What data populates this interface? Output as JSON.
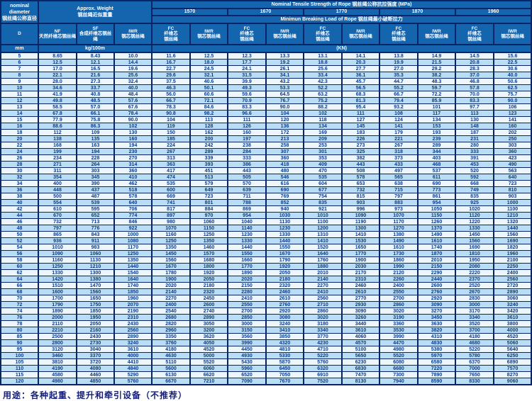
{
  "header": {
    "diameter_title": "nominal\ndiameter\n钢丝绳公称直径",
    "weight_title": "Approx. Weight\n钢丝绳近似重量",
    "strength_title": "Nominal Tensile Strength of Rope 钢丝绳公称抗拉强度 (MPa)",
    "breaking_title": "Minimun Breaking Load of Rope 钢丝绳最小破断拉力",
    "strengths": [
      "1570",
      "1670",
      "1770",
      "1870",
      "1960"
    ],
    "d_label": "D",
    "nf_label": "NF\n天然纤维芯钢丝绳",
    "sf_label": "SF\n合成纤维芯钢丝绳",
    "iwr_weight_label": "IWR\n钢芯钢丝绳",
    "fc_label": {
      "code": "FC",
      "text": "FC\n纤维芯\n钢丝绳"
    },
    "iwr_label": {
      "code": "IWR",
      "text": "IWR\n钢芯钢丝绳"
    },
    "unit_mm": "mm",
    "unit_kg": "kg/100m",
    "unit_kn": "(KN)"
  },
  "columns": [
    "D",
    "NF",
    "SF",
    "IWR",
    "FC-1570",
    "IWR-1570",
    "FC-1670",
    "IWR-1670",
    "FC-1770",
    "IWR-1770",
    "FC-1870",
    "IWR-1870",
    "FC-1960",
    "IWR-1960"
  ],
  "rows": [
    [
      "5",
      "8.65",
      "8.43",
      "10.0",
      "11.6",
      "12.5",
      "12.3",
      "13.3",
      "13.1",
      "14.1",
      "13.8",
      "14.9",
      "14.5",
      "15.6"
    ],
    [
      "6",
      "12.5",
      "12.1",
      "14.4",
      "16.7",
      "18.0",
      "17.7",
      "19.2",
      "18.8",
      "20.3",
      "19.9",
      "21.5",
      "20.8",
      "22.5"
    ],
    [
      "7",
      "17.0",
      "16.5",
      "19.6",
      "22.7",
      "24.5",
      "24.1",
      "26.1",
      "25.6",
      "27.7",
      "27.0",
      "29.2",
      "28.3",
      "30.6"
    ],
    [
      "8",
      "22.1",
      "21.6",
      "25.6",
      "29.6",
      "32.1",
      "31.5",
      "34.1",
      "33.4",
      "36.1",
      "35.3",
      "38.2",
      "37.0",
      "40.0"
    ],
    [
      "9",
      "28.0",
      "27.3",
      "32.4",
      "37.5",
      "40.6",
      "39.9",
      "43.2",
      "42.3",
      "45.7",
      "44.7",
      "48.3",
      "46.8",
      "50.6"
    ],
    [
      "10",
      "34.6",
      "33.7",
      "40.0",
      "46.3",
      "50.1",
      "49.3",
      "53.3",
      "52.2",
      "56.5",
      "55.2",
      "59.7",
      "57.8",
      "62.5"
    ],
    [
      "11",
      "41.9",
      "40.8",
      "48.4",
      "56.0",
      "60.6",
      "59.6",
      "64.5",
      "63.2",
      "68.3",
      "66.7",
      "72.2",
      "70.0",
      "75.7"
    ],
    [
      "12",
      "49.8",
      "48.5",
      "57.6",
      "66.7",
      "72.1",
      "70.9",
      "76.7",
      "75.2",
      "81.3",
      "79.4",
      "85.9",
      "83.3",
      "90.0"
    ],
    [
      "13",
      "58.5",
      "57.0",
      "67.6",
      "78.3",
      "84.6",
      "83.3",
      "90.0",
      "88.2",
      "95.4",
      "93.2",
      "101",
      "97.7",
      "106"
    ],
    [
      "14",
      "67.8",
      "66.1",
      "78.4",
      "90.8",
      "98.2",
      "96.6",
      "104",
      "102",
      "111",
      "108",
      "117",
      "113",
      "123"
    ],
    [
      "15",
      "77.9",
      "75.8",
      "90.0",
      "104",
      "113",
      "111",
      "120",
      "118",
      "127",
      "124",
      "134",
      "130",
      "141"
    ],
    [
      "16",
      "88.6",
      "86.3",
      "102",
      "119",
      "128",
      "126",
      "136",
      "134",
      "145",
      "141",
      "153",
      "148",
      "160"
    ],
    [
      "18",
      "112",
      "109",
      "130",
      "150",
      "162",
      "160",
      "172",
      "169",
      "183",
      "179",
      "193",
      "187",
      "202"
    ],
    [
      "20",
      "138",
      "135",
      "160",
      "185",
      "200",
      "197",
      "213",
      "209",
      "226",
      "221",
      "239",
      "231",
      "250"
    ],
    [
      "22",
      "168",
      "163",
      "194",
      "224",
      "242",
      "238",
      "258",
      "253",
      "273",
      "267",
      "289",
      "280",
      "303"
    ],
    [
      "24",
      "199",
      "194",
      "230",
      "267",
      "289",
      "284",
      "307",
      "301",
      "325",
      "318",
      "344",
      "333",
      "360"
    ],
    [
      "26",
      "234",
      "228",
      "270",
      "313",
      "339",
      "333",
      "360",
      "353",
      "382",
      "373",
      "403",
      "391",
      "423"
    ],
    [
      "28",
      "271",
      "264",
      "314",
      "363",
      "393",
      "386",
      "418",
      "409",
      "443",
      "433",
      "468",
      "453",
      "490"
    ],
    [
      "30",
      "311",
      "303",
      "360",
      "417",
      "451",
      "443",
      "480",
      "470",
      "508",
      "497",
      "537",
      "520",
      "563"
    ],
    [
      "32",
      "354",
      "345",
      "410",
      "474",
      "513",
      "505",
      "546",
      "535",
      "578",
      "565",
      "611",
      "592",
      "640"
    ],
    [
      "34",
      "400",
      "390",
      "462",
      "535",
      "579",
      "570",
      "616",
      "604",
      "653",
      "638",
      "690",
      "668",
      "723"
    ],
    [
      "36",
      "448",
      "437",
      "518",
      "600",
      "649",
      "639",
      "690",
      "677",
      "732",
      "715",
      "773",
      "749",
      "810"
    ],
    [
      "38",
      "500",
      "487",
      "578",
      "669",
      "723",
      "711",
      "769",
      "754",
      "815",
      "797",
      "861",
      "835",
      "903"
    ],
    [
      "40",
      "554",
      "539",
      "640",
      "741",
      "801",
      "788",
      "852",
      "835",
      "903",
      "883",
      "954",
      "925",
      "1000"
    ],
    [
      "42",
      "610",
      "595",
      "706",
      "817",
      "884",
      "869",
      "940",
      "921",
      "996",
      "973",
      "1050",
      "1020",
      "1100"
    ],
    [
      "44",
      "670",
      "652",
      "774",
      "897",
      "970",
      "954",
      "1030",
      "1010",
      "1090",
      "1070",
      "1150",
      "1120",
      "1210"
    ],
    [
      "46",
      "732",
      "713",
      "846",
      "980",
      "1060",
      "1040",
      "1130",
      "1100",
      "1190",
      "1170",
      "1260",
      "1220",
      "1320"
    ],
    [
      "48",
      "797",
      "776",
      "922",
      "1070",
      "1150",
      "1140",
      "1230",
      "1200",
      "1300",
      "1270",
      "1370",
      "1330",
      "1440"
    ],
    [
      "50",
      "865",
      "843",
      "1000",
      "1160",
      "1250",
      "1230",
      "1330",
      "1310",
      "1410",
      "1380",
      "1490",
      "1450",
      "1560"
    ],
    [
      "52",
      "936",
      "911",
      "1080",
      "1250",
      "1350",
      "1330",
      "1440",
      "1410",
      "1530",
      "1490",
      "1610",
      "1560",
      "1690"
    ],
    [
      "54",
      "1010",
      "983",
      "1170",
      "1350",
      "1460",
      "1440",
      "1550",
      "1520",
      "1650",
      "1610",
      "1740",
      "1690",
      "1820"
    ],
    [
      "56",
      "1090",
      "1060",
      "1250",
      "1450",
      "1570",
      "1550",
      "1670",
      "1640",
      "1770",
      "1730",
      "1870",
      "1810",
      "1960"
    ],
    [
      "58",
      "1160",
      "1130",
      "1350",
      "1560",
      "1680",
      "1660",
      "1790",
      "1760",
      "1900",
      "1860",
      "2010",
      "1950",
      "2100"
    ],
    [
      "60",
      "1250",
      "1210",
      "1440",
      "1670",
      "1800",
      "1770",
      "1920",
      "1880",
      "2030",
      "1990",
      "2150",
      "2080",
      "2250"
    ],
    [
      "62",
      "1330",
      "1300",
      "1540",
      "1780",
      "1920",
      "1890",
      "2050",
      "2010",
      "2170",
      "2120",
      "2290",
      "2220",
      "2400"
    ],
    [
      "64",
      "1420",
      "1380",
      "1640",
      "1900",
      "2050",
      "2020",
      "2180",
      "2140",
      "2310",
      "2260",
      "2440",
      "2370",
      "2560"
    ],
    [
      "66",
      "1510",
      "1470",
      "1740",
      "2020",
      "2180",
      "2150",
      "2320",
      "2270",
      "2460",
      "2400",
      "2600",
      "2520",
      "2720"
    ],
    [
      "68",
      "1600",
      "1560",
      "1850",
      "2140",
      "2320",
      "2280",
      "2460",
      "2410",
      "2610",
      "2550",
      "2760",
      "2670",
      "2890"
    ],
    [
      "70",
      "1700",
      "1650",
      "1960",
      "2270",
      "2450",
      "2410",
      "2610",
      "2560",
      "2770",
      "2700",
      "2920",
      "2830",
      "3060"
    ],
    [
      "72",
      "1790",
      "1750",
      "2070",
      "2400",
      "2600",
      "2550",
      "2760",
      "2710",
      "2930",
      "2860",
      "3090",
      "3000",
      "3240"
    ],
    [
      "74",
      "1890",
      "1850",
      "2190",
      "2540",
      "2740",
      "2700",
      "2920",
      "2860",
      "3090",
      "3020",
      "3270",
      "3170",
      "3420"
    ],
    [
      "76",
      "2000",
      "1950",
      "2310",
      "2680",
      "2890",
      "2850",
      "3080",
      "3020",
      "3260",
      "3190",
      "3450",
      "3340",
      "3610"
    ],
    [
      "78",
      "2110",
      "2050",
      "2430",
      "2820",
      "3050",
      "3000",
      "3240",
      "3180",
      "3440",
      "3360",
      "3630",
      "3520",
      "3800"
    ],
    [
      "80",
      "2210",
      "2160",
      "2560",
      "2960",
      "3200",
      "3150",
      "3410",
      "3340",
      "3610",
      "3530",
      "3820",
      "3700",
      "4000"
    ],
    [
      "85",
      "2500",
      "2430",
      "2890",
      "3350",
      "3620",
      "3560",
      "3850",
      "3770",
      "4060",
      "3990",
      "4310",
      "4180",
      "4520"
    ],
    [
      "90",
      "2800",
      "2730",
      "3240",
      "3760",
      "4050",
      "3990",
      "4320",
      "4230",
      "4570",
      "4470",
      "4830",
      "4680",
      "5060"
    ],
    [
      "95",
      "3120",
      "3040",
      "3610",
      "4180",
      "4520",
      "4450",
      "4810",
      "4710",
      "5100",
      "4980",
      "5380",
      "5220",
      "5640"
    ],
    [
      "100",
      "3460",
      "3370",
      "4000",
      "4630",
      "5000",
      "4930",
      "5330",
      "5220",
      "5650",
      "5520",
      "5970",
      "5780",
      "6250"
    ],
    [
      "105",
      "3810",
      "3720",
      "4410",
      "5110",
      "5520",
      "5430",
      "5870",
      "5760",
      "6230",
      "6080",
      "6580",
      "6370",
      "6890"
    ],
    [
      "110",
      "4190",
      "4080",
      "4840",
      "5600",
      "6060",
      "5960",
      "6450",
      "6320",
      "6830",
      "6680",
      "7220",
      "7000",
      "7570"
    ],
    [
      "115",
      "4580",
      "4460",
      "5290",
      "6130",
      "6620",
      "6520",
      "7050",
      "6910",
      "7470",
      "7300",
      "7890",
      "7650",
      "8270"
    ],
    [
      "120",
      "4980",
      "4850",
      "5760",
      "6670",
      "7210",
      "7090",
      "7670",
      "7520",
      "8130",
      "7940",
      "8590",
      "8330",
      "9060"
    ]
  ],
  "footer_note": "用途：各种起重、提升和牵引设备（不推荐）",
  "colors": {
    "header_bg": "#1464ae",
    "border": "#0a2468",
    "row_light": "#edf6fd",
    "row_alt": "#b9ddf5",
    "cell_text": "#0b3c8c",
    "note_text": "#16207a"
  }
}
